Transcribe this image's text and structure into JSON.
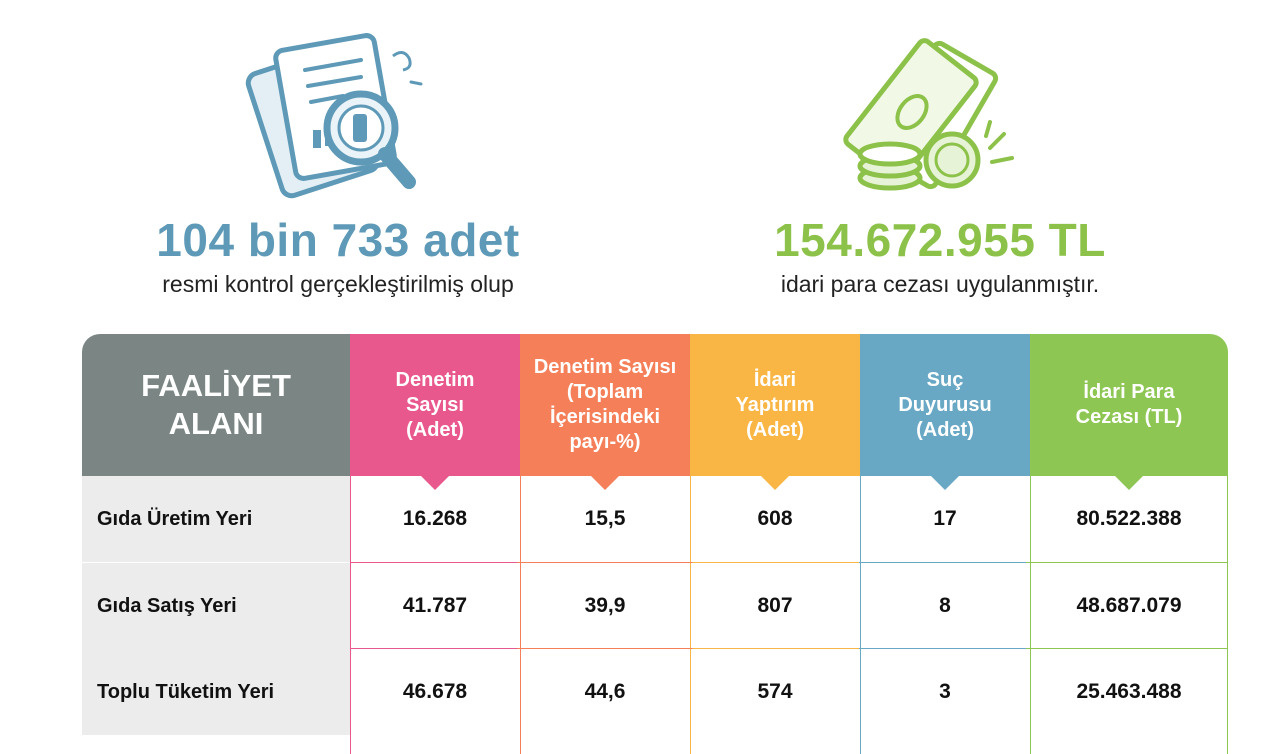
{
  "stats": {
    "left": {
      "value": "104 bin 733 adet",
      "caption": "resmi kontrol gerçekleştirilmiş olup",
      "icon": "document-magnifier-icon"
    },
    "right": {
      "value": "154.672.955 TL",
      "caption": "idari para cezası uygulanmıştır.",
      "icon": "money-coins-icon"
    }
  },
  "colors": {
    "blue": "#5e9ab7",
    "green": "#8dc24a",
    "gray": "#7a8584",
    "pink": "#e9588c",
    "orange": "#f47f58",
    "yellow": "#f9b645",
    "teal": "#68a8c5",
    "lime": "#8ec653"
  },
  "table": {
    "first_header": "FAALİYET ALANI",
    "columns": [
      {
        "header": "Denetim Sayısı (Adet)",
        "color": "#e9588c"
      },
      {
        "header": "Denetim Sayısı (Toplam İçerisindeki payı-%)",
        "color": "#f47f58"
      },
      {
        "header": "İdari Yaptırım (Adet)",
        "color": "#f9b645"
      },
      {
        "header": "Suç Duyurusu (Adet)",
        "color": "#68a8c5"
      },
      {
        "header": "İdari Para Cezası (TL)",
        "color": "#8ec653"
      }
    ],
    "rows": [
      {
        "label": "Gıda Üretim Yeri",
        "values": [
          "16.268",
          "15,5",
          "608",
          "17",
          "80.522.388"
        ]
      },
      {
        "label": "Gıda Satış Yeri",
        "values": [
          "41.787",
          "39,9",
          "807",
          "8",
          "48.687.079"
        ]
      },
      {
        "label": "Toplu Tüketim Yeri",
        "values": [
          "46.678",
          "44,6",
          "574",
          "3",
          "25.463.488"
        ]
      }
    ]
  }
}
